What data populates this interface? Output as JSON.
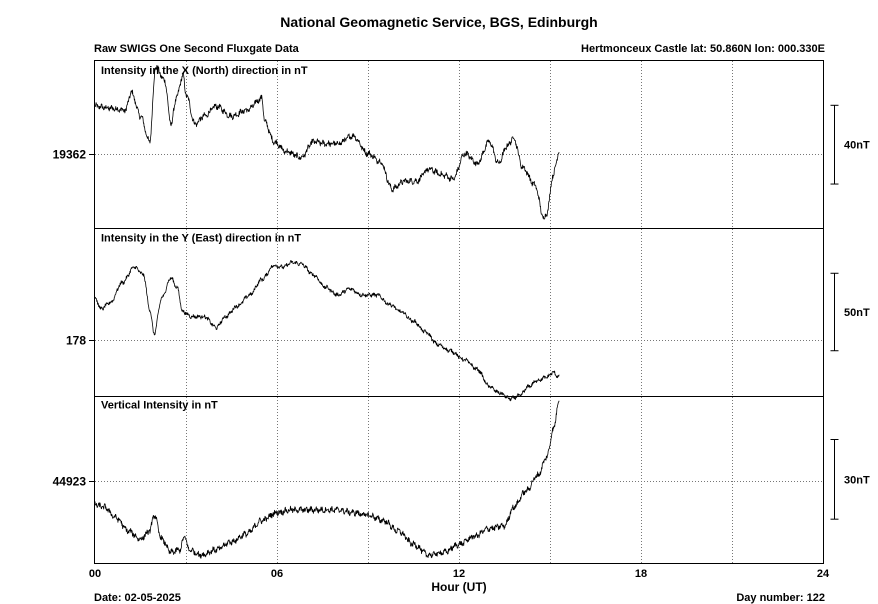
{
  "title": "National Geomagnetic Service, BGS, Edinburgh",
  "subtitle_left": "Raw SWIGS One Second Fluxgate Data",
  "station_info": "Hertmonceux Castle  lat: 50.860N lon: 000.330E",
  "date_label": "Date: 02-05-2025",
  "day_label": "Day number:  122",
  "chart_data": {
    "type": "line",
    "xlabel": "Hour (UT)",
    "xlim": [
      0,
      24
    ],
    "x_ticks": [
      "00",
      "06",
      "12",
      "18",
      "24"
    ],
    "grid": true,
    "panels": [
      {
        "name": "Intensity in the X (North) direction in nT",
        "baseline_label": "19362",
        "scale_label": "40nT",
        "scale_nT": 40,
        "baseline": 19362,
        "ylim": [
          19324,
          19409
        ],
        "noise": 1.2,
        "x": [
          0,
          0.5,
          1.0,
          1.2,
          1.5,
          1.8,
          2.0,
          2.3,
          2.5,
          2.7,
          2.9,
          3.0,
          3.3,
          3.6,
          4.0,
          4.5,
          5.0,
          5.5,
          5.6,
          5.9,
          6.3,
          6.8,
          7.2,
          7.6,
          8.0,
          8.5,
          9.0,
          9.4,
          9.8,
          10.2,
          10.6,
          11.0,
          11.5,
          11.8,
          12.2,
          12.6,
          13.0,
          13.3,
          13.6,
          13.8,
          14.1,
          14.5,
          14.8,
          14.9,
          15.1,
          15.3
        ],
        "y": [
          19386,
          19385,
          19384,
          19393,
          19381,
          19368,
          19406,
          19399,
          19377,
          19391,
          19402,
          19392,
          19377,
          19381,
          19386,
          19381,
          19384,
          19390,
          19378,
          19368,
          19363,
          19360,
          19368,
          19367,
          19367,
          19371,
          19362,
          19358,
          19344,
          19348,
          19348,
          19354,
          19351,
          19349,
          19362,
          19357,
          19368,
          19357,
          19366,
          19370,
          19355,
          19346,
          19329,
          19332,
          19351,
          19363
        ]
      },
      {
        "name": "Intensity in the Y (East) direction in nT",
        "baseline_label": "178",
        "scale_label": "50nT",
        "scale_nT": 50,
        "baseline": 178,
        "ylim": [
          142,
          250
        ],
        "noise": 1.0,
        "x": [
          0,
          0.2,
          0.5,
          0.9,
          1.3,
          1.6,
          1.8,
          1.95,
          2.2,
          2.5,
          2.7,
          2.9,
          3.2,
          3.6,
          4.0,
          4.3,
          4.7,
          5.1,
          5.5,
          5.9,
          6.2,
          6.5,
          6.8,
          7.2,
          7.6,
          8.0,
          8.4,
          8.8,
          9.3,
          9.7,
          10.1,
          10.5,
          10.9,
          11.3,
          11.7,
          12.2,
          12.6,
          13.0,
          13.3,
          13.7,
          14.0,
          14.3,
          14.6,
          14.9,
          15.1,
          15.3
        ],
        "y": [
          205,
          198,
          202,
          215,
          225,
          220,
          198,
          182,
          205,
          218,
          212,
          196,
          193,
          193,
          186,
          193,
          200,
          207,
          217,
          226,
          225,
          228,
          227,
          220,
          212,
          207,
          211,
          207,
          207,
          201,
          196,
          190,
          183,
          175,
          171,
          165,
          159,
          148,
          144,
          140,
          142,
          148,
          152,
          154,
          157,
          154
        ]
      },
      {
        "name": "Vertical Intensity in nT",
        "baseline_label": "44923",
        "scale_label": "30nT",
        "scale_nT": 30,
        "baseline": 44923,
        "ylim": [
          44892,
          44955
        ],
        "noise": 0.9,
        "x": [
          0,
          0.3,
          0.7,
          1.1,
          1.5,
          1.8,
          1.95,
          2.2,
          2.5,
          2.8,
          2.95,
          3.1,
          3.5,
          4.0,
          4.5,
          5.0,
          5.5,
          6.0,
          6.5,
          7.0,
          7.5,
          8.0,
          8.5,
          9.0,
          9.5,
          10.0,
          10.5,
          11.0,
          11.5,
          12.0,
          12.5,
          13.0,
          13.5,
          13.8,
          14.2,
          14.6,
          14.9,
          15.1,
          15.3
        ],
        "y": [
          44914,
          44913,
          44909,
          44904,
          44901,
          44904,
          44910,
          44901,
          44896,
          44897,
          44902,
          44897,
          44895,
          44897,
          44900,
          44903,
          44908,
          44911,
          44912,
          44912,
          44912,
          44912,
          44911,
          44910,
          44908,
          44904,
          44899,
          44895,
          44896,
          44899,
          44902,
          44905,
          44906,
          44913,
          44919,
          44925,
          44932,
          44942,
          44953
        ]
      }
    ]
  }
}
